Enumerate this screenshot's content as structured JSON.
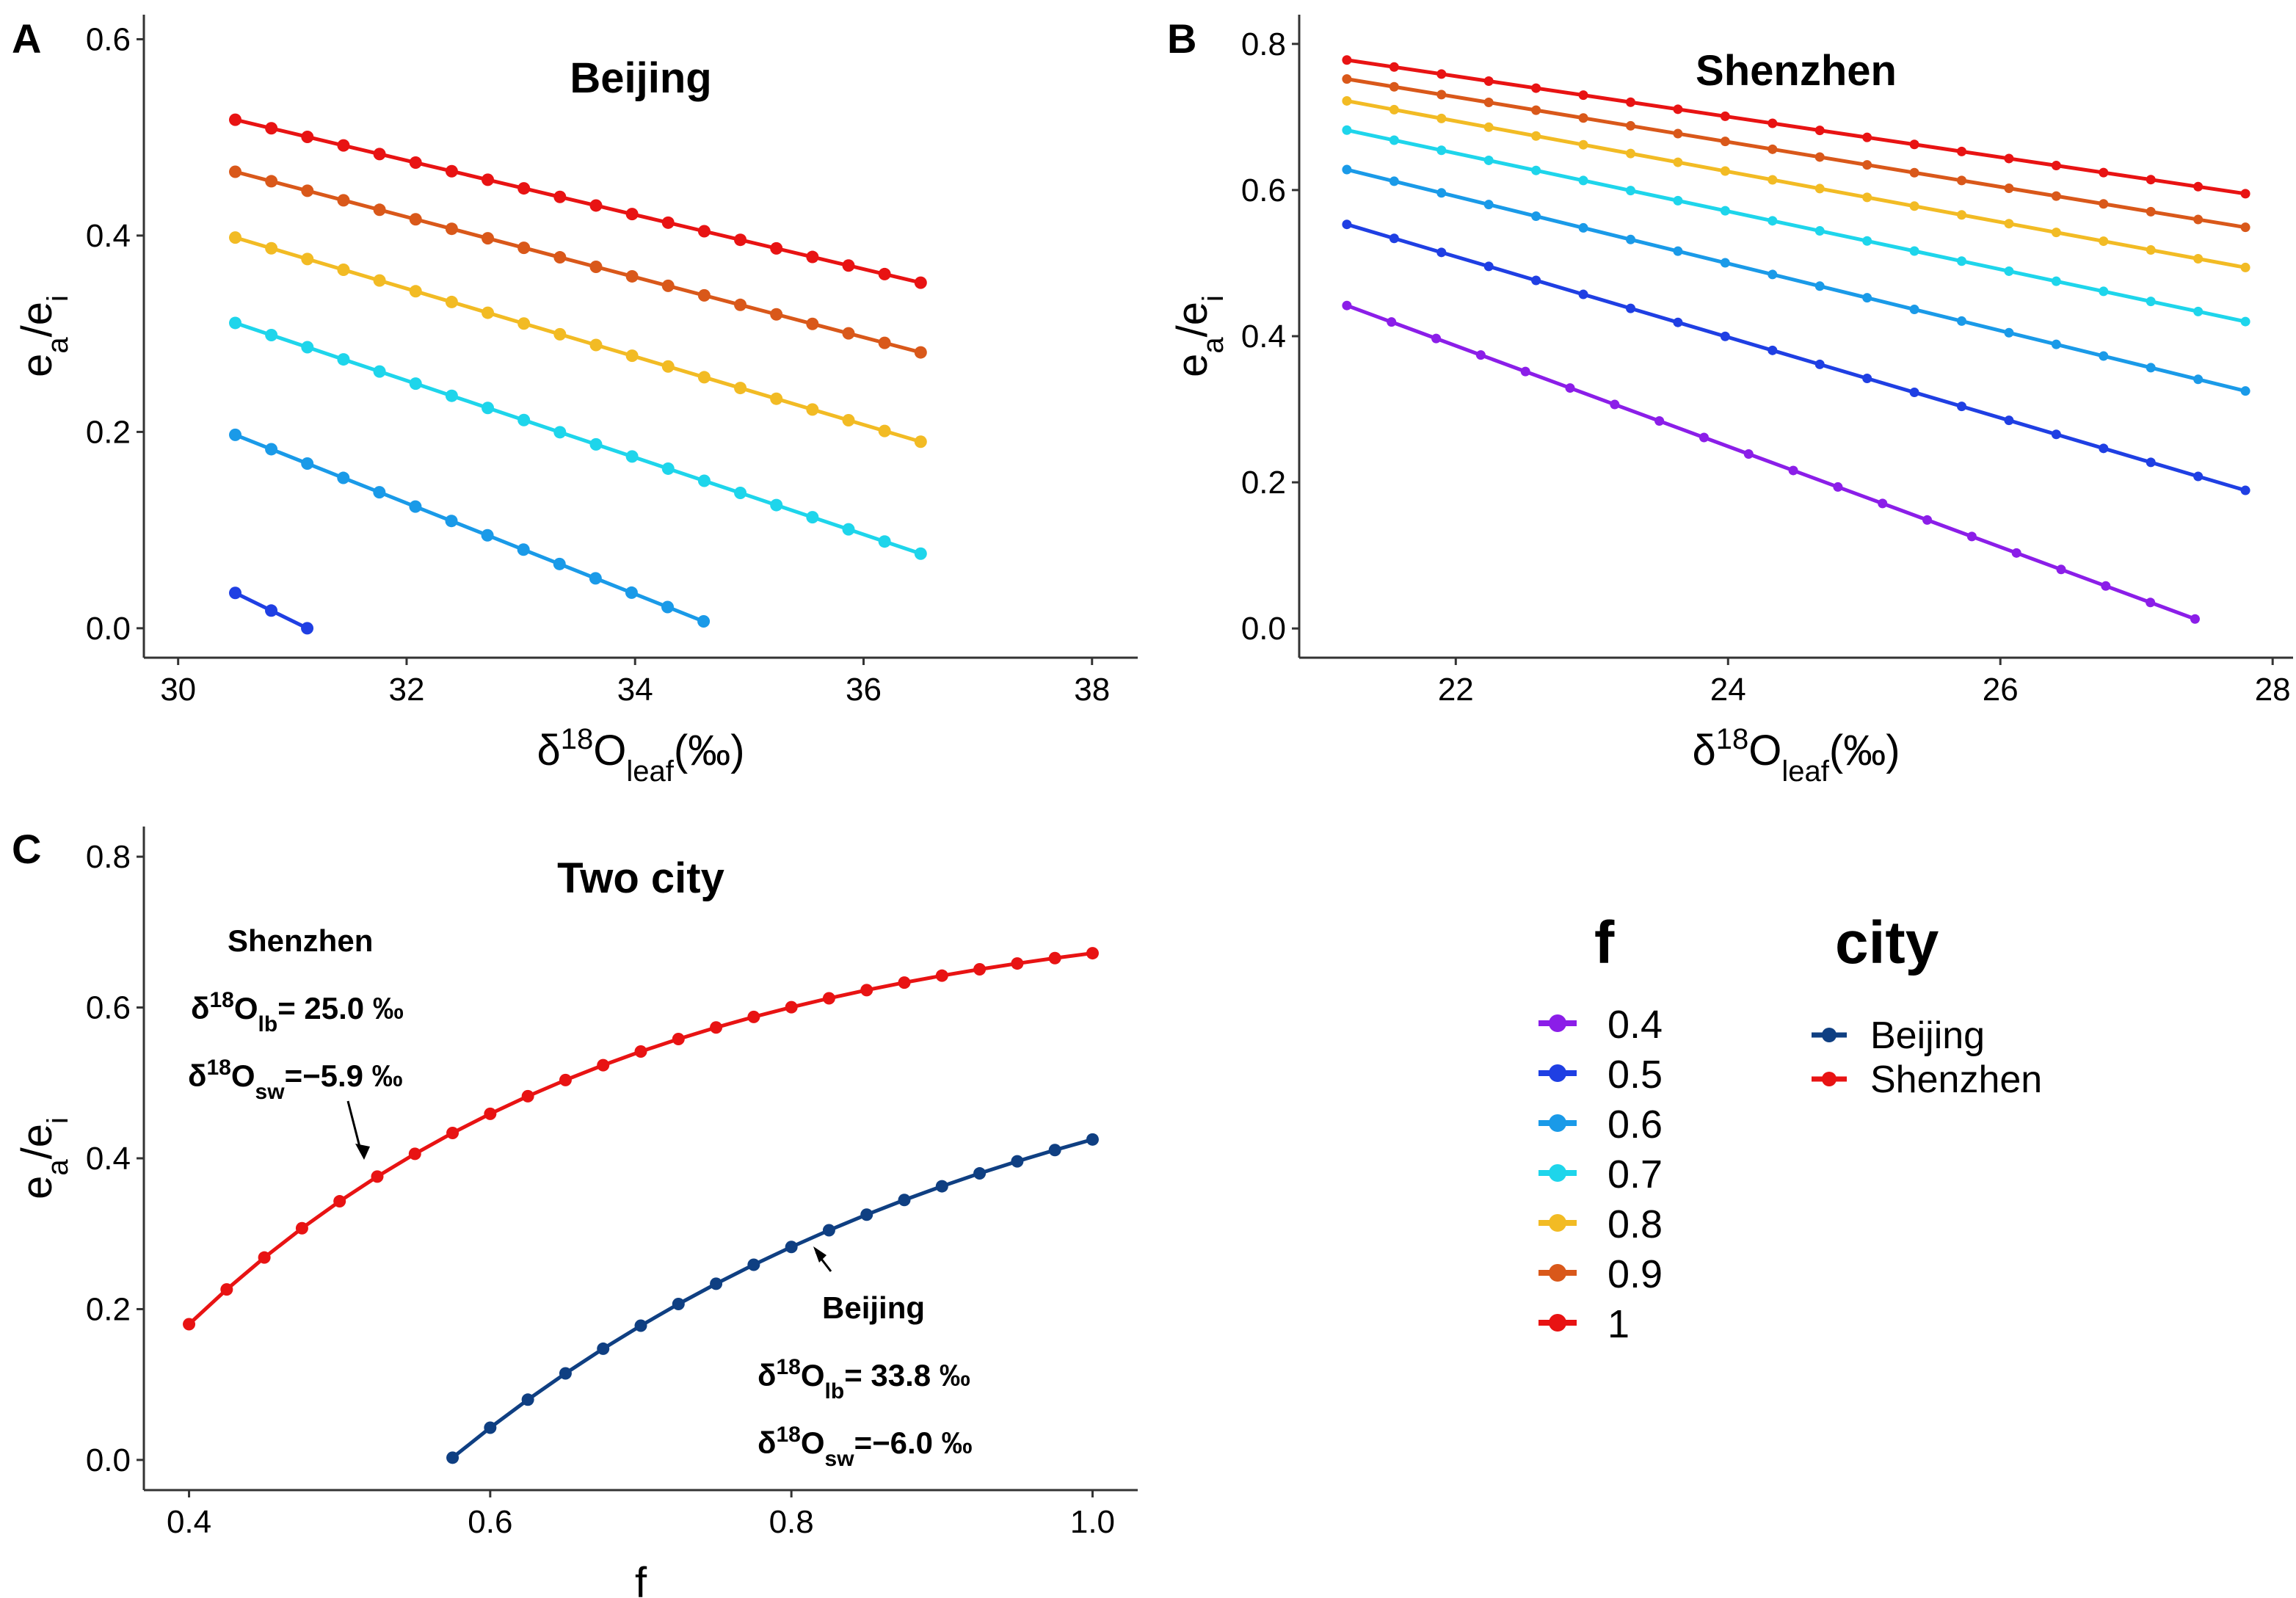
{
  "chart_data": [
    {
      "id": "A",
      "panel_label": "A",
      "type": "line",
      "title": "Beijing",
      "xlabel": {
        "prefix": "δ",
        "sup": "18",
        "main": "O",
        "sub": "leaf",
        "suffix": "(‰)"
      },
      "ylabel": {
        "a": "e",
        "a_sub": "a",
        "slash": "/",
        "b": "e",
        "b_sub": "i"
      },
      "xlim": [
        29.7,
        38.4
      ],
      "ylim": [
        -0.03,
        0.625
      ],
      "xticks": [
        30,
        32,
        34,
        36,
        38
      ],
      "xtick_labels": [
        "30",
        "32",
        "34",
        "36",
        "38"
      ],
      "yticks": [
        0,
        0.2,
        0.4,
        0.6
      ],
      "ytick_labels": [
        "0.0",
        "0.2",
        "0.4",
        "0.6"
      ],
      "series": [
        {
          "name": "0.5",
          "color": "#1f3fe3",
          "x0": 30.5,
          "y0": 0.036,
          "x1": 31.13,
          "y1": 0.0,
          "n": 3
        },
        {
          "name": "0.6",
          "color": "#1a9ae8",
          "x0": 30.5,
          "y0": 0.197,
          "x1": 34.6,
          "y1": 0.007,
          "n": 14
        },
        {
          "name": "0.7",
          "color": "#1ed5eb",
          "x0": 30.5,
          "y0": 0.311,
          "x1": 36.5,
          "y1": 0.076,
          "n": 20
        },
        {
          "name": "0.8",
          "color": "#f2bb24",
          "x0": 30.5,
          "y0": 0.398,
          "x1": 36.5,
          "y1": 0.19,
          "n": 20
        },
        {
          "name": "0.9",
          "color": "#d9581a",
          "x0": 30.5,
          "y0": 0.465,
          "x1": 36.5,
          "y1": 0.281,
          "n": 20
        },
        {
          "name": "1",
          "color": "#e81313",
          "x0": 30.5,
          "y0": 0.518,
          "x1": 36.5,
          "y1": 0.352,
          "n": 20
        }
      ]
    },
    {
      "id": "B",
      "panel_label": "B",
      "type": "line",
      "title": "Shenzhen",
      "xlabel": {
        "prefix": "δ",
        "sup": "18",
        "main": "O",
        "sub": "leaf",
        "suffix": "(‰)"
      },
      "ylabel": {
        "a": "e",
        "a_sub": "a",
        "slash": "/",
        "b": "e",
        "b_sub": "i"
      },
      "xlim": [
        20.85,
        28.15
      ],
      "ylim": [
        -0.04,
        0.84
      ],
      "xticks": [
        22,
        24,
        26,
        28
      ],
      "xtick_labels": [
        "22",
        "24",
        "26",
        "28"
      ],
      "yticks": [
        0,
        0.2,
        0.4,
        0.6,
        0.8
      ],
      "ytick_labels": [
        "0.0",
        "0.2",
        "0.4",
        "0.6",
        "0.8"
      ],
      "series": [
        {
          "name": "0.4",
          "color": "#8b1ee8",
          "x0": 21.2,
          "y0": 0.442,
          "x1": 27.43,
          "y1": 0.013,
          "n": 20
        },
        {
          "name": "0.5",
          "color": "#1f3fe3",
          "x0": 21.2,
          "y0": 0.553,
          "x1": 27.8,
          "y1": 0.189,
          "n": 20
        },
        {
          "name": "0.6",
          "color": "#1a9ae8",
          "x0": 21.2,
          "y0": 0.628,
          "x1": 27.8,
          "y1": 0.325,
          "n": 20
        },
        {
          "name": "0.7",
          "color": "#1ed5eb",
          "x0": 21.2,
          "y0": 0.682,
          "x1": 27.8,
          "y1": 0.42,
          "n": 20
        },
        {
          "name": "0.8",
          "color": "#f2bb24",
          "x0": 21.2,
          "y0": 0.722,
          "x1": 27.8,
          "y1": 0.494,
          "n": 20
        },
        {
          "name": "0.9",
          "color": "#d9581a",
          "x0": 21.2,
          "y0": 0.752,
          "x1": 27.8,
          "y1": 0.549,
          "n": 20
        },
        {
          "name": "1",
          "color": "#e81313",
          "x0": 21.2,
          "y0": 0.778,
          "x1": 27.8,
          "y1": 0.595,
          "n": 20
        }
      ]
    },
    {
      "id": "C",
      "panel_label": "C",
      "type": "line",
      "title": "Two city",
      "xlabel": {
        "main": "f"
      },
      "ylabel": {
        "a": "e",
        "a_sub": "a",
        "slash": "/",
        "b": "e",
        "b_sub": "i"
      },
      "xlim": [
        0.37,
        1.03
      ],
      "ylim": [
        -0.04,
        0.84
      ],
      "xticks": [
        0.4,
        0.6,
        0.8,
        1.0
      ],
      "xtick_labels": [
        "0.4",
        "0.6",
        "0.8",
        "1.0"
      ],
      "yticks": [
        0,
        0.2,
        0.4,
        0.6,
        0.8
      ],
      "ytick_labels": [
        "0.0",
        "0.2",
        "0.4",
        "0.6",
        "0.8"
      ],
      "series": [
        {
          "name": "Shenzhen",
          "color": "#e81313",
          "curve": "shenzhen",
          "x0": 0.4,
          "x1": 1.0,
          "n": 25
        },
        {
          "name": "Beijing",
          "color": "#0f3f82",
          "curve": "beijing",
          "x0": 0.575,
          "x1": 1.0,
          "n": 18
        }
      ],
      "annotations": {
        "shenzhen": {
          "name": "Shenzhen",
          "lb": {
            "prefix": "δ",
            "sup": "18",
            "main": "O",
            "sub": "lb",
            "value": "= 25.0 ‰"
          },
          "sw": {
            "prefix": "δ",
            "sup": "18",
            "main": "O",
            "sub": "sw",
            "value": "=−5.9 ‰"
          }
        },
        "beijing": {
          "name": "Beijing",
          "lb": {
            "prefix": "δ",
            "sup": "18",
            "main": "O",
            "sub": "lb",
            "value": "= 33.8 ‰"
          },
          "sw": {
            "prefix": "δ",
            "sup": "18",
            "main": "O",
            "sub": "sw",
            "value": "=−6.0 ‰"
          }
        }
      }
    }
  ],
  "legend": {
    "f": {
      "title": "f",
      "items": [
        {
          "label": "0.4",
          "color": "#8b1ee8"
        },
        {
          "label": "0.5",
          "color": "#1f3fe3"
        },
        {
          "label": "0.6",
          "color": "#1a9ae8"
        },
        {
          "label": "0.7",
          "color": "#1ed5eb"
        },
        {
          "label": "0.8",
          "color": "#f2bb24"
        },
        {
          "label": "0.9",
          "color": "#d9581a"
        },
        {
          "label": "1",
          "color": "#e81313"
        }
      ]
    },
    "city": {
      "title": "city",
      "items": [
        {
          "label": "Beijing",
          "color": "#0f3f82"
        },
        {
          "label": "Shenzhen",
          "color": "#e81313"
        }
      ]
    }
  }
}
